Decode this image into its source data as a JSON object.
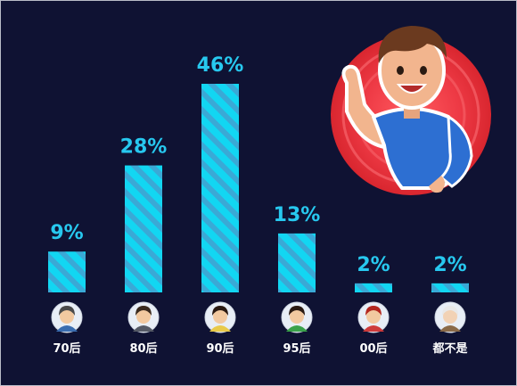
{
  "chart_data": {
    "type": "bar",
    "categories": [
      "70后",
      "80后",
      "90后",
      "95后",
      "00后",
      "都不是"
    ],
    "values": [
      9,
      28,
      46,
      13,
      2,
      2
    ],
    "value_labels": [
      "9%",
      "28%",
      "46%",
      "13%",
      "2%",
      "2%"
    ],
    "ylim": [
      0,
      50
    ],
    "grid": false,
    "bar_color": "#12d6f2",
    "stripe_color": "#3aa9d6",
    "label_color": "#27c8ef"
  },
  "colors": {
    "background": "#0f1233",
    "circle": "#e8323c",
    "shirt": "#2d6fd2"
  },
  "icons": [
    "avatar-70s-icon",
    "avatar-80s-icon",
    "avatar-90s-icon",
    "avatar-95s-icon",
    "avatar-00s-icon",
    "avatar-elder-icon",
    "waving-man-illustration"
  ]
}
